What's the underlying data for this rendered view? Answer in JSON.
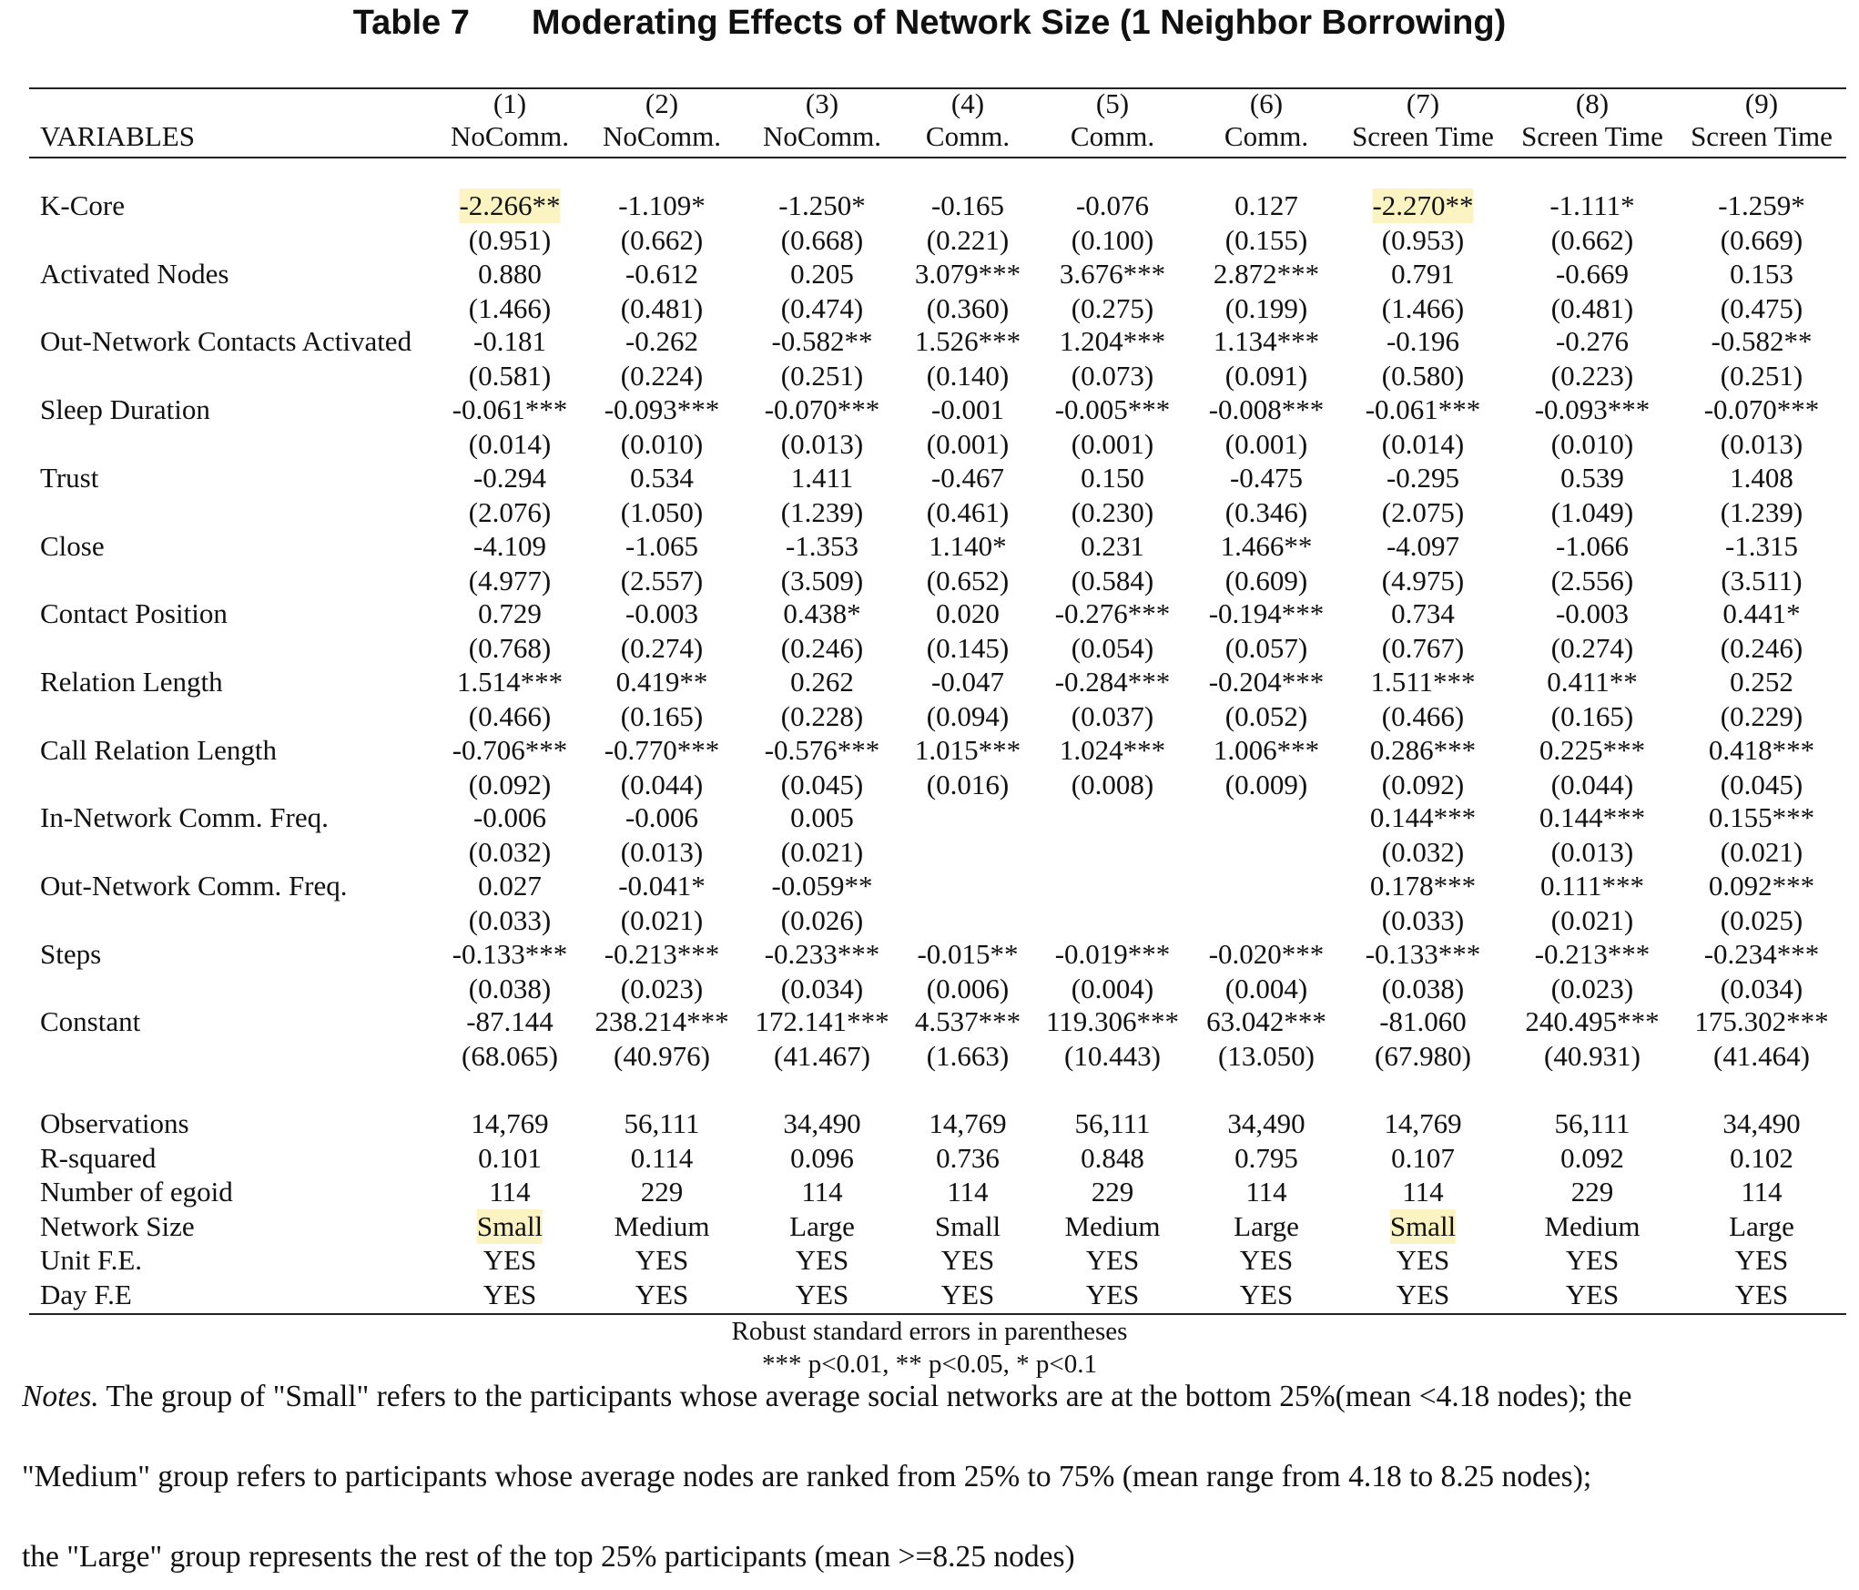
{
  "table_label": "Table 7",
  "title": "Moderating Effects of Network Size (1 Neighbor Borrowing)",
  "header": {
    "variables_label": "VARIABLES",
    "numbers": [
      "(1)",
      "(2)",
      "(3)",
      "(4)",
      "(5)",
      "(6)",
      "(7)",
      "(8)",
      "(9)"
    ],
    "names": [
      "NoComm.",
      "NoComm.",
      "NoComm.",
      "Comm.",
      "Comm.",
      "Comm.",
      "Screen Time",
      "Screen Time",
      "Screen Time"
    ]
  },
  "rows": [
    {
      "name": "K-Core",
      "coef": [
        "-2.266**",
        "-1.109*",
        "-1.250*",
        "-0.165",
        "-0.076",
        "0.127",
        "-2.270**",
        "-1.111*",
        "-1.259*"
      ],
      "se": [
        "(0.951)",
        "(0.662)",
        "(0.668)",
        "(0.221)",
        "(0.100)",
        "(0.155)",
        "(0.953)",
        "(0.662)",
        "(0.669)"
      ]
    },
    {
      "name": "Activated Nodes",
      "coef": [
        "0.880",
        "-0.612",
        "0.205",
        "3.079***",
        "3.676***",
        "2.872***",
        "0.791",
        "-0.669",
        "0.153"
      ],
      "se": [
        "(1.466)",
        "(0.481)",
        "(0.474)",
        "(0.360)",
        "(0.275)",
        "(0.199)",
        "(1.466)",
        "(0.481)",
        "(0.475)"
      ]
    },
    {
      "name": "Out-Network Contacts Activated",
      "coef": [
        "-0.181",
        "-0.262",
        "-0.582**",
        "1.526***",
        "1.204***",
        "1.134***",
        "-0.196",
        "-0.276",
        "-0.582**"
      ],
      "se": [
        "(0.581)",
        "(0.224)",
        "(0.251)",
        "(0.140)",
        "(0.073)",
        "(0.091)",
        "(0.580)",
        "(0.223)",
        "(0.251)"
      ]
    },
    {
      "name": "Sleep Duration",
      "coef": [
        "-0.061***",
        "-0.093***",
        "-0.070***",
        "-0.001",
        "-0.005***",
        "-0.008***",
        "-0.061***",
        "-0.093***",
        "-0.070***"
      ],
      "se": [
        "(0.014)",
        "(0.010)",
        "(0.013)",
        "(0.001)",
        "(0.001)",
        "(0.001)",
        "(0.014)",
        "(0.010)",
        "(0.013)"
      ]
    },
    {
      "name": "Trust",
      "coef": [
        "-0.294",
        "0.534",
        "1.411",
        "-0.467",
        "0.150",
        "-0.475",
        "-0.295",
        "0.539",
        "1.408"
      ],
      "se": [
        "(2.076)",
        "(1.050)",
        "(1.239)",
        "(0.461)",
        "(0.230)",
        "(0.346)",
        "(2.075)",
        "(1.049)",
        "(1.239)"
      ]
    },
    {
      "name": "Close",
      "coef": [
        "-4.109",
        "-1.065",
        "-1.353",
        "1.140*",
        "0.231",
        "1.466**",
        "-4.097",
        "-1.066",
        "-1.315"
      ],
      "se": [
        "(4.977)",
        "(2.557)",
        "(3.509)",
        "(0.652)",
        "(0.584)",
        "(0.609)",
        "(4.975)",
        "(2.556)",
        "(3.511)"
      ]
    },
    {
      "name": "Contact Position",
      "coef": [
        "0.729",
        "-0.003",
        "0.438*",
        "0.020",
        "-0.276***",
        "-0.194***",
        "0.734",
        "-0.003",
        "0.441*"
      ],
      "se": [
        "(0.768)",
        "(0.274)",
        "(0.246)",
        "(0.145)",
        "(0.054)",
        "(0.057)",
        "(0.767)",
        "(0.274)",
        "(0.246)"
      ]
    },
    {
      "name": "Relation Length",
      "coef": [
        "1.514***",
        "0.419**",
        "0.262",
        "-0.047",
        "-0.284***",
        "-0.204***",
        "1.511***",
        "0.411**",
        "0.252"
      ],
      "se": [
        "(0.466)",
        "(0.165)",
        "(0.228)",
        "(0.094)",
        "(0.037)",
        "(0.052)",
        "(0.466)",
        "(0.165)",
        "(0.229)"
      ]
    },
    {
      "name": "Call Relation Length",
      "coef": [
        "-0.706***",
        "-0.770***",
        "-0.576***",
        "1.015***",
        "1.024***",
        "1.006***",
        "0.286***",
        "0.225***",
        "0.418***"
      ],
      "se": [
        "(0.092)",
        "(0.044)",
        "(0.045)",
        "(0.016)",
        "(0.008)",
        "(0.009)",
        "(0.092)",
        "(0.044)",
        "(0.045)"
      ]
    },
    {
      "name": "In-Network Comm. Freq.",
      "coef": [
        "-0.006",
        "-0.006",
        "0.005",
        "",
        "",
        "",
        "0.144***",
        "0.144***",
        "0.155***"
      ],
      "se": [
        "(0.032)",
        "(0.013)",
        "(0.021)",
        "",
        "",
        "",
        "(0.032)",
        "(0.013)",
        "(0.021)"
      ]
    },
    {
      "name": "Out-Network Comm. Freq.",
      "coef": [
        "0.027",
        "-0.041*",
        "-0.059**",
        "",
        "",
        "",
        "0.178***",
        "0.111***",
        "0.092***"
      ],
      "se": [
        "(0.033)",
        "(0.021)",
        "(0.026)",
        "",
        "",
        "",
        "(0.033)",
        "(0.021)",
        "(0.025)"
      ]
    },
    {
      "name": "Steps",
      "coef": [
        "-0.133***",
        "-0.213***",
        "-0.233***",
        "-0.015**",
        "-0.019***",
        "-0.020***",
        "-0.133***",
        "-0.213***",
        "-0.234***"
      ],
      "se": [
        "(0.038)",
        "(0.023)",
        "(0.034)",
        "(0.006)",
        "(0.004)",
        "(0.004)",
        "(0.038)",
        "(0.023)",
        "(0.034)"
      ]
    },
    {
      "name": "Constant",
      "coef": [
        "-87.144",
        "238.214***",
        "172.141***",
        "4.537***",
        "119.306***",
        "63.042***",
        "-81.060",
        "240.495***",
        "175.302***"
      ],
      "se": [
        "(68.065)",
        "(40.976)",
        "(41.467)",
        "(1.663)",
        "(10.443)",
        "(13.050)",
        "(67.980)",
        "(40.931)",
        "(41.464)"
      ]
    }
  ],
  "stats": [
    {
      "name": "Observations",
      "values": [
        "14,769",
        "56,111",
        "34,490",
        "14,769",
        "56,111",
        "34,490",
        "14,769",
        "56,111",
        "34,490"
      ]
    },
    {
      "name": "R-squared",
      "values": [
        "0.101",
        "0.114",
        "0.096",
        "0.736",
        "0.848",
        "0.795",
        "0.107",
        "0.092",
        "0.102"
      ]
    },
    {
      "name": "Number of egoid",
      "values": [
        "114",
        "229",
        "114",
        "114",
        "229",
        "114",
        "114",
        "229",
        "114"
      ]
    },
    {
      "name": "Network Size",
      "values": [
        "Small",
        "Medium",
        "Large",
        "Small",
        "Medium",
        "Large",
        "Small",
        "Medium",
        "Large"
      ]
    },
    {
      "name": "Unit F.E.",
      "values": [
        "YES",
        "YES",
        "YES",
        "YES",
        "YES",
        "YES",
        "YES",
        "YES",
        "YES"
      ]
    },
    {
      "name": "Day F.E",
      "values": [
        "YES",
        "YES",
        "YES",
        "YES",
        "YES",
        "YES",
        "YES",
        "YES",
        "YES"
      ]
    }
  ],
  "highlight_color": "#fcf3c2",
  "footnote_1": "Robust standard errors in parentheses",
  "footnote_2": "*** p<0.01, ** p<0.05, * p<0.1",
  "notes": {
    "label": "Notes.",
    "line_1": " The group of \"Small\" refers to the participants whose average social networks are at the bottom 25%(mean <4.18 nodes); the",
    "line_2": "\"Medium\" group refers to participants whose average nodes are ranked from 25% to 75% (mean range from 4.18 to 8.25 nodes);",
    "line_3": "the \"Large\" group represents the rest of the top 25% participants (mean >=8.25 nodes)"
  }
}
